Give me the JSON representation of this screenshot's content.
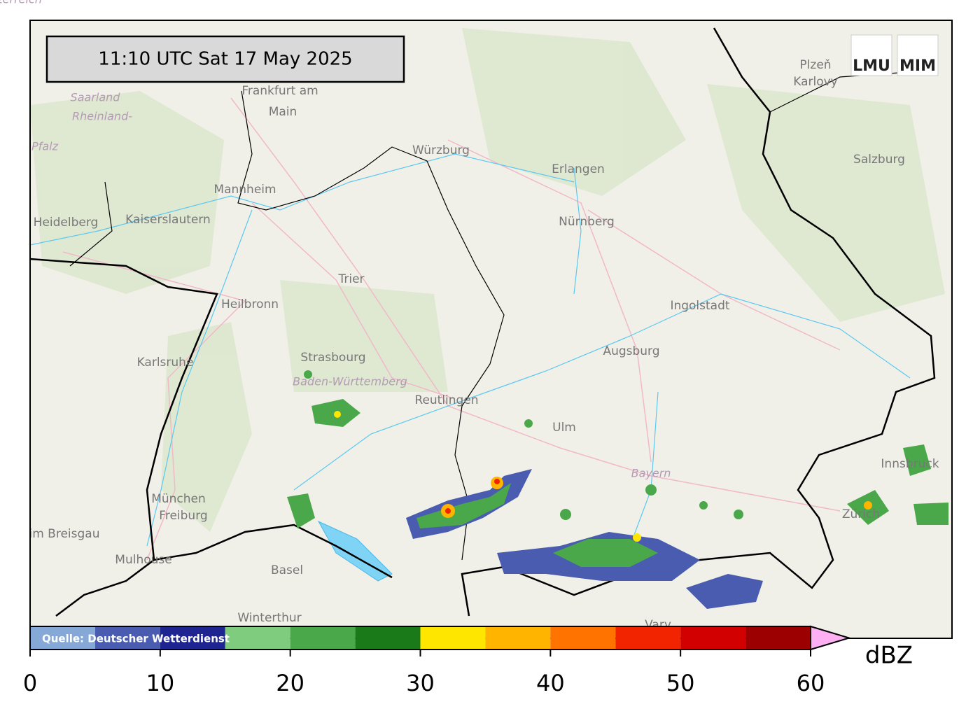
{
  "timestamp": "11:10 UTC  Sat 17 May 2025",
  "logos": [
    "LMU",
    "MIM"
  ],
  "source": "Quelle: Deutscher Wetterdienst",
  "map": {
    "places": [
      "Frankfurt am",
      "Main",
      "Würzburg",
      "Erlangen",
      "Nürnberg",
      "Mannheim",
      "Kaiserslautern",
      "Heidelberg",
      "Saarland",
      "Rheinland-",
      "Pfalz",
      "Trier",
      "Heilbronn",
      "Karlsruhe",
      "Strasbourg",
      "Baden-Württemberg",
      "Reutlingen",
      "Ulm",
      "Augsburg",
      "Ingolstadt",
      "Bayern",
      "München",
      "Freiburg",
      "im Breisgau",
      "Mulhouse",
      "Basel",
      "Winterthur",
      "Zürich",
      "Salzburg",
      "Plzeň",
      "Karlovy",
      "Vary",
      "Innsbruck",
      "Oberösterreich"
    ]
  },
  "colorbar": {
    "label": "dBZ",
    "bins": [
      0,
      5,
      10,
      15,
      20,
      25,
      30,
      35,
      40,
      45,
      50,
      55,
      60
    ],
    "colors": [
      "#86a8d6",
      "#4a5cb0",
      "#1e2490",
      "#7fcc7f",
      "#4aa84a",
      "#1a7a1a",
      "#ffe600",
      "#ffb400",
      "#ff7400",
      "#f22400",
      "#d20000",
      "#9c0000"
    ],
    "extend_color": "#ffb0f2",
    "ticks": [
      0,
      10,
      20,
      30,
      40,
      50,
      60
    ]
  }
}
